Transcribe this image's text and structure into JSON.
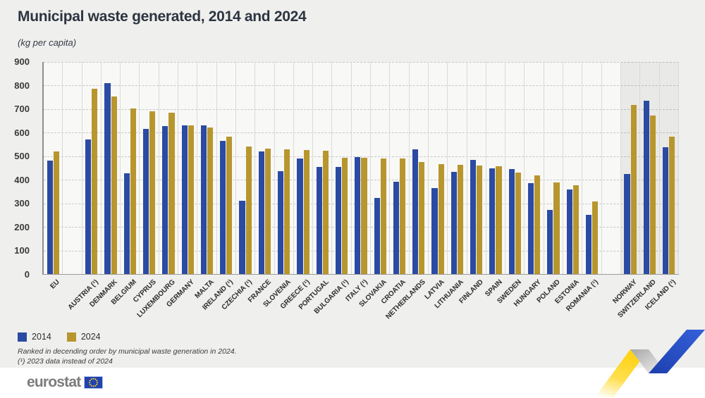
{
  "header": {
    "title": "Municipal waste generated, 2014 and 2024",
    "subtitle": "(kg per capita)"
  },
  "chart_data": {
    "type": "bar",
    "title": "Municipal waste generated, 2014 and 2024",
    "unit_label": "(kg per capita)",
    "ylim": [
      0,
      900
    ],
    "ytick_step": 100,
    "grid": true,
    "legend_position": "bottom-left",
    "note": "Shaded right-hand section groups the non-EU countries Norway, Switzerland, Iceland",
    "categories": [
      {
        "label": "EU",
        "section": "eu"
      },
      {
        "label": "AUSTRIA (¹)",
        "section": "members"
      },
      {
        "label": "DENMARK",
        "section": "members"
      },
      {
        "label": "BELGIUM",
        "section": "members"
      },
      {
        "label": "CYPRUS",
        "section": "members"
      },
      {
        "label": "LUXEMBOURG",
        "section": "members"
      },
      {
        "label": "GERMANY",
        "section": "members"
      },
      {
        "label": "MALTA",
        "section": "members"
      },
      {
        "label": "IRELAND (¹)",
        "section": "members"
      },
      {
        "label": "CZECHIA (¹)",
        "section": "members"
      },
      {
        "label": "FRANCE",
        "section": "members"
      },
      {
        "label": "SLOVENIA",
        "section": "members"
      },
      {
        "label": "GREECE (¹)",
        "section": "members"
      },
      {
        "label": "PORTUGAL",
        "section": "members"
      },
      {
        "label": "BULGARIA (¹)",
        "section": "members"
      },
      {
        "label": "ITALY (¹)",
        "section": "members"
      },
      {
        "label": "SLOVAKIA",
        "section": "members"
      },
      {
        "label": "CROATIA",
        "section": "members"
      },
      {
        "label": "NETHERLANDS",
        "section": "members"
      },
      {
        "label": "LATVIA",
        "section": "members"
      },
      {
        "label": "LITHUANIA",
        "section": "members"
      },
      {
        "label": "FINLAND",
        "section": "members"
      },
      {
        "label": "SPAIN",
        "section": "members"
      },
      {
        "label": "SWEDEN",
        "section": "members"
      },
      {
        "label": "HUNGARY",
        "section": "members"
      },
      {
        "label": "POLAND",
        "section": "members"
      },
      {
        "label": "ESTONIA",
        "section": "members"
      },
      {
        "label": "ROMANIA (¹)",
        "section": "members"
      },
      {
        "label": "NORWAY",
        "section": "efta"
      },
      {
        "label": "SWITZERLAND",
        "section": "efta"
      },
      {
        "label": "ICELAND (¹)",
        "section": "efta"
      }
    ],
    "series": [
      {
        "name": "2014",
        "color": "#2b4aa3",
        "values": [
          480,
          570,
          810,
          428,
          615,
          628,
          632,
          632,
          565,
          310,
          520,
          437,
          490,
          455,
          455,
          495,
          323,
          393,
          528,
          365,
          435,
          484,
          450,
          445,
          387,
          273,
          358,
          252,
          425,
          736,
          538
        ]
      },
      {
        "name": "2024",
        "color": "#b8962e",
        "values": [
          520,
          785,
          755,
          703,
          690,
          685,
          630,
          622,
          583,
          542,
          533,
          530,
          527,
          523,
          494,
          492,
          491,
          490,
          475,
          466,
          464,
          460,
          458,
          430,
          418,
          390,
          377,
          307,
          718,
          672,
          583
        ]
      }
    ]
  },
  "legend": {
    "items": [
      {
        "label": "2014",
        "color": "#2b4aa3"
      },
      {
        "label": "2024",
        "color": "#b8962e"
      }
    ]
  },
  "footnotes": {
    "line1": "Ranked in decending order by municipal waste generation in 2024.",
    "line2": "(¹) 2023 data instead of 2024"
  },
  "footer": {
    "brand": "eurostat"
  },
  "colors": {
    "page_bg": "#efefed",
    "plot_bg": "#f8f8f6",
    "bar_2014": "#2b4aa3",
    "bar_2024": "#b8962e",
    "flag_blue": "#2243af",
    "flag_stars": "#ffd617",
    "zigzag_yellow": "#ffd414",
    "zigzag_blue": "#2a50c8"
  }
}
